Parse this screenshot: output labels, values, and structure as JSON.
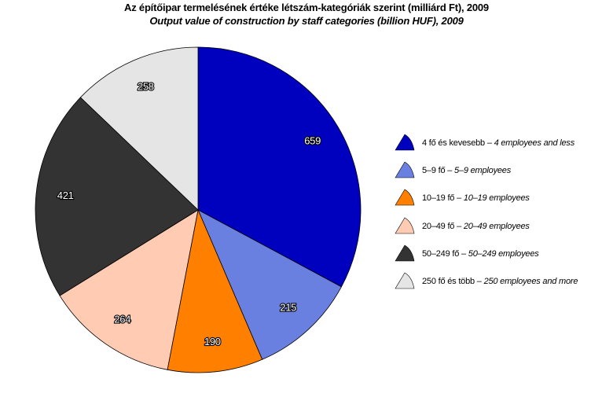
{
  "title": {
    "hu": "Az építőipar termelésének értéke létszám-kategóriák szerint (milliárd Ft), 2009",
    "en": "Output value of construction by staff categories (billion HUF), 2009"
  },
  "legend": [
    {
      "label_hu": "4 fő és kevesebb – ",
      "label_en": "4 employees and less",
      "icon": "pie-wedge-icon"
    },
    {
      "label_hu": "5–9 fő – ",
      "label_en": "5–9 employees",
      "icon": "pie-wedge-icon"
    },
    {
      "label_hu": "10–19 fő – ",
      "label_en": "10–19 employees",
      "icon": "pie-wedge-icon"
    },
    {
      "label_hu": "20–49 fő – ",
      "label_en": "20–49 employees",
      "icon": "pie-wedge-icon"
    },
    {
      "label_hu": "50–249 fő – ",
      "label_en": "50–249 employees",
      "icon": "pie-wedge-icon"
    },
    {
      "label_hu": "250 fő és több – ",
      "label_en": "250 employees and more",
      "icon": "pie-wedge-icon"
    }
  ],
  "chart_data": {
    "type": "pie",
    "title": "Az építőipar termelésének értéke létszám-kategóriák szerint (milliárd Ft), 2009",
    "subtitle": "Output value of construction by staff categories (billion HUF), 2009",
    "categories": [
      "4 fő és kevesebb – 4 employees and less",
      "5–9 fő – 5–9 employees",
      "10–19 fő – 10–19 employees",
      "20–49 fő – 20–49 employees",
      "50–249 fő – 50–249 employees",
      "250 fő és több – 250 employees and more"
    ],
    "values": [
      659,
      215,
      190,
      264,
      421,
      258
    ],
    "data_labels": [
      "659",
      "215",
      "190",
      "264",
      "421",
      "258"
    ],
    "colors": [
      "#0000BF",
      "#6A80E0",
      "#FF8000",
      "#FFCBB3",
      "#333333",
      "#E5E5E5"
    ],
    "start_angle": "12 o'clock",
    "direction": "clockwise",
    "unit": "billion HUF",
    "legend_position": "right"
  }
}
